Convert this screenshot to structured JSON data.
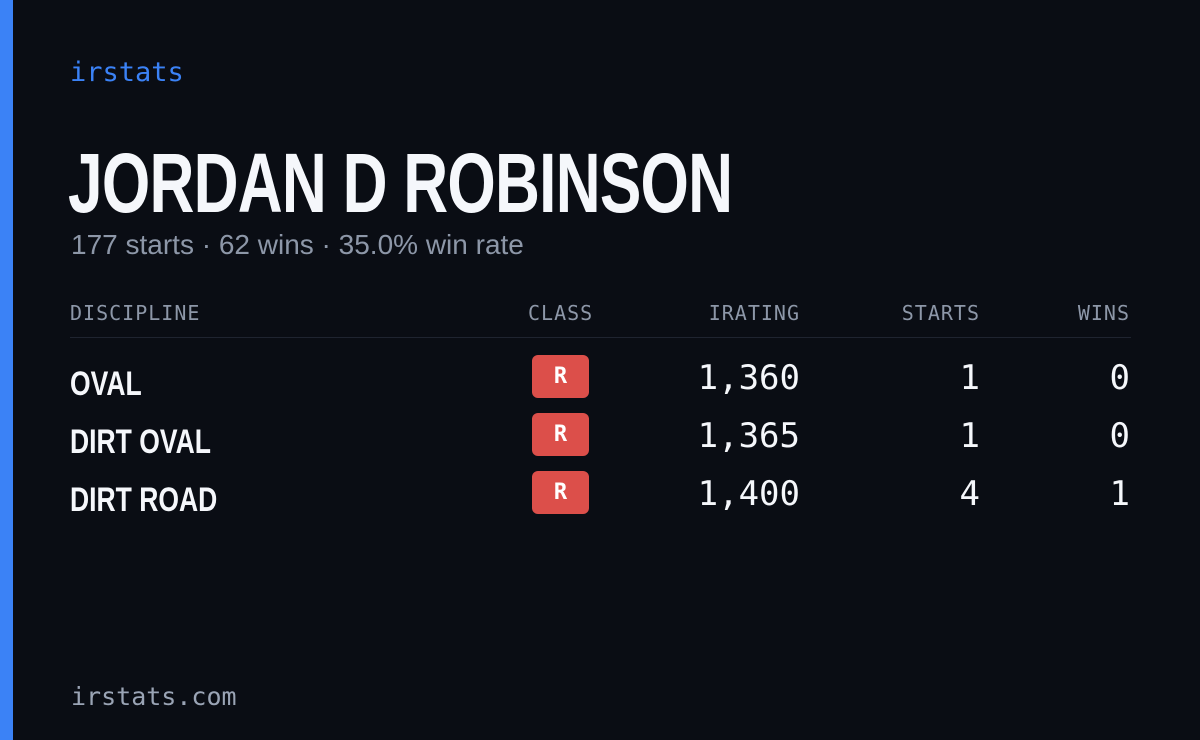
{
  "brand": "irstats",
  "driver": {
    "name": "JORDAN D ROBINSON",
    "summary": "177 starts · 62 wins · 35.0% win rate"
  },
  "table": {
    "headers": {
      "discipline": "DISCIPLINE",
      "class": "CLASS",
      "irating": "IRATING",
      "starts": "STARTS",
      "wins": "WINS"
    },
    "rows": [
      {
        "discipline": "OVAL",
        "class": "R",
        "irating": "1,360",
        "starts": "1",
        "wins": "0"
      },
      {
        "discipline": "DIRT OVAL",
        "class": "R",
        "irating": "1,365",
        "starts": "1",
        "wins": "0"
      },
      {
        "discipline": "DIRT ROAD",
        "class": "R",
        "irating": "1,400",
        "starts": "4",
        "wins": "1"
      }
    ]
  },
  "footer": {
    "url": "irstats.com"
  },
  "colors": {
    "accent": "#3b82f6",
    "background": "#0a0d14",
    "class_r_badge": "#dc4f4a"
  }
}
